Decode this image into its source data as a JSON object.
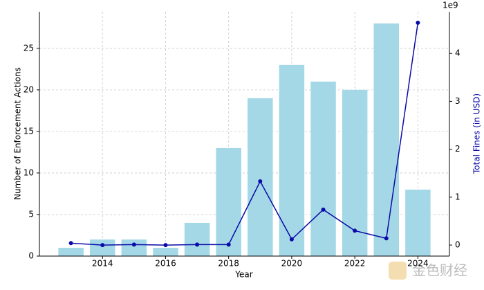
{
  "chart_data": {
    "type": "bar",
    "xlabel": "Year",
    "ylabel": "Number of Enforcement Actions",
    "y2label": "Total Fines (in USD)",
    "y2_offset_label": "1e9",
    "x": [
      2013,
      2014,
      2015,
      2016,
      2017,
      2018,
      2019,
      2020,
      2021,
      2022,
      2023,
      2024
    ],
    "series": [
      {
        "type": "bar",
        "axis": "y",
        "color": "#a4d8e6",
        "values": [
          1,
          2,
          2,
          1,
          4,
          13,
          19,
          23,
          21,
          20,
          28,
          8
        ]
      },
      {
        "type": "line",
        "axis": "y2",
        "color": "#0a0aa8",
        "values": [
          0.04,
          0.0,
          0.01,
          0.0,
          0.01,
          0.01,
          1.33,
          0.12,
          0.74,
          0.3,
          0.14,
          4.64
        ]
      }
    ],
    "xlim": [
      2012.0,
      2025.0
    ],
    "xticks": [
      2014,
      2016,
      2018,
      2020,
      2022,
      2024
    ],
    "ylim": [
      0,
      29.4
    ],
    "yticks": [
      0,
      5,
      10,
      15,
      20,
      25
    ],
    "y2lim": [
      -0.23,
      4.87
    ],
    "y2ticks": [
      0,
      1,
      2,
      3,
      4
    ],
    "grid": true,
    "y2label_color": "#0a0aa8",
    "watermark": "金色财经"
  }
}
